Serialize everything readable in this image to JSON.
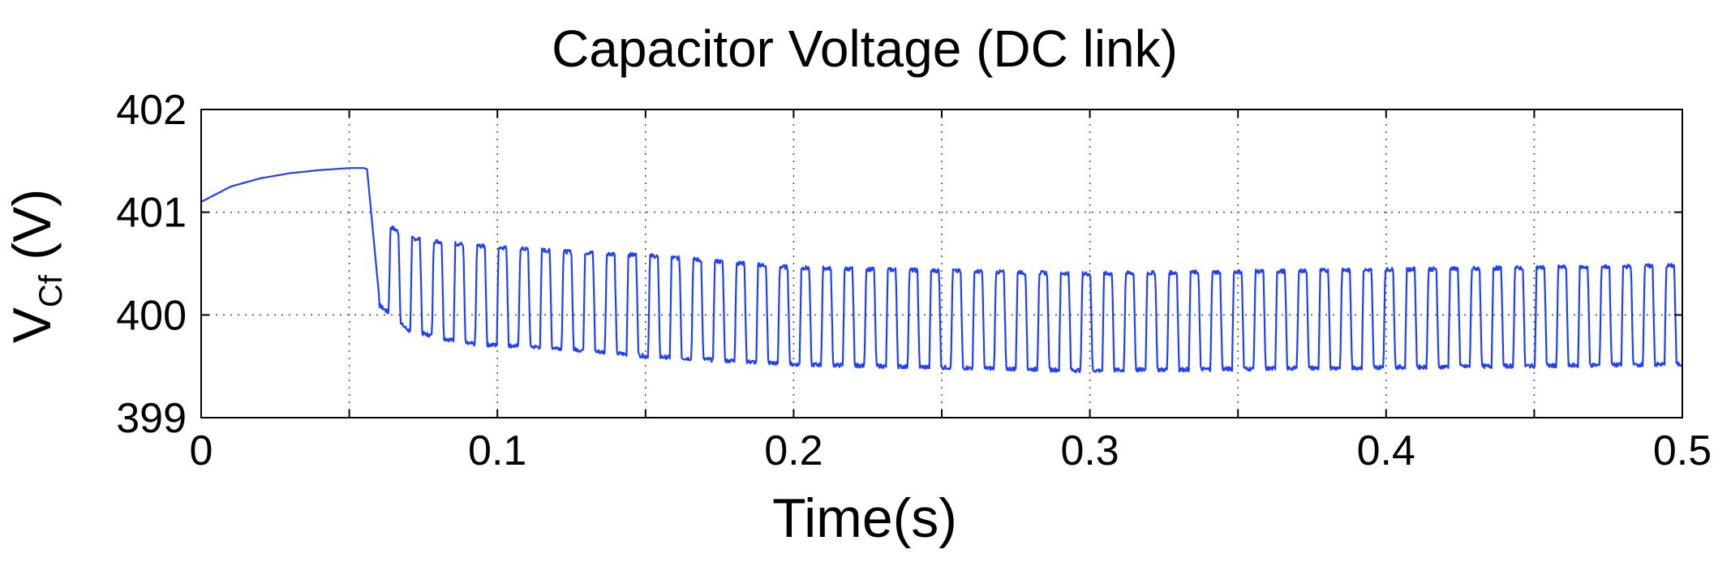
{
  "chart_data": {
    "type": "line",
    "title": "Capacitor Voltage (DC link)",
    "xlabel": "Time(s)",
    "ylabel_main": "V",
    "ylabel_sub": "Cf",
    "ylabel_unit": " (V)",
    "xlim": [
      0,
      0.5
    ],
    "ylim": [
      399,
      402
    ],
    "x_ticks": [
      0,
      0.1,
      0.2,
      0.3,
      0.4,
      0.5
    ],
    "x_tick_labels": [
      "0",
      "0.1",
      "0.2",
      "0.3",
      "0.4",
      "0.5"
    ],
    "y_ticks": [
      399,
      400,
      401,
      402
    ],
    "y_tick_labels": [
      "399",
      "400",
      "401",
      "402"
    ],
    "grid": true,
    "series": [
      {
        "color": "#1f3fff",
        "segments": [
          {
            "kind": "rise",
            "x": [
              0,
              0.01,
              0.02,
              0.03,
              0.04,
              0.05,
              0.055,
              0.056
            ],
            "y": [
              401.1,
              401.25,
              401.33,
              401.38,
              401.41,
              401.43,
              401.43,
              401.42
            ]
          },
          {
            "kind": "oscillation",
            "t_start": 0.056,
            "t_end": 0.5,
            "period": 0.0073,
            "first_low": 400.2,
            "envelope_x": [
              0.056,
              0.07,
              0.09,
              0.12,
              0.15,
              0.2,
              0.3,
              0.4,
              0.5
            ],
            "envelope_high": [
              401.0,
              400.75,
              400.68,
              400.62,
              400.58,
              400.46,
              400.4,
              400.44,
              400.48
            ],
            "envelope_low": [
              400.2,
              399.85,
              399.72,
              399.68,
              399.6,
              399.52,
              399.46,
              399.49,
              399.52
            ]
          }
        ]
      }
    ]
  }
}
